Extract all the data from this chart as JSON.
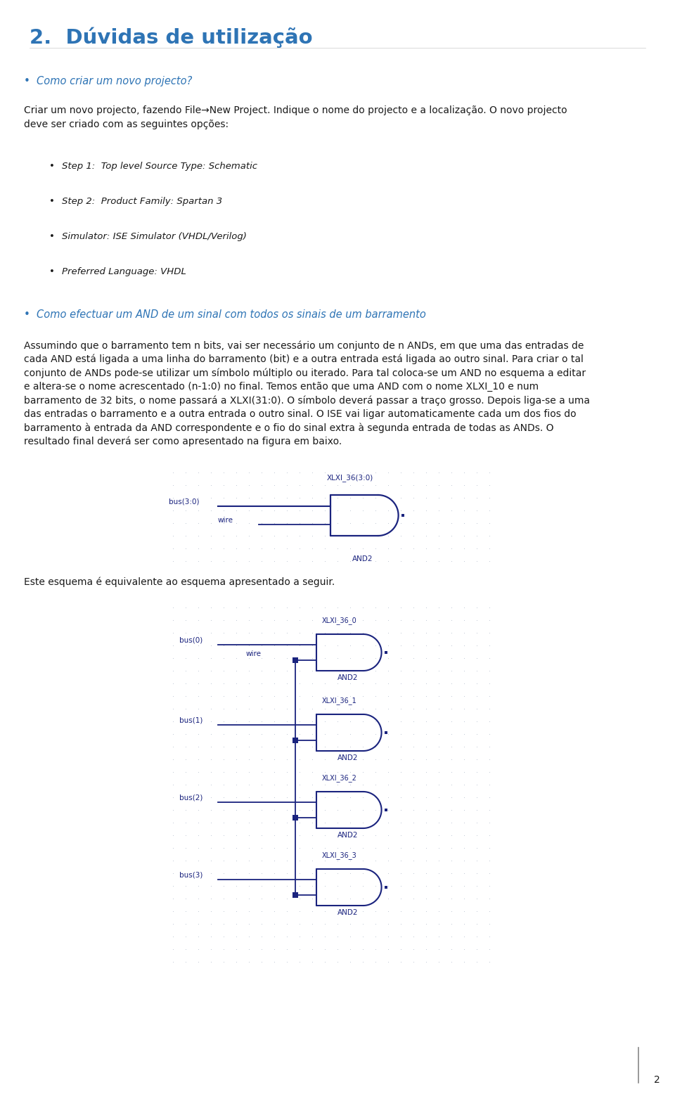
{
  "title": "2.  Dúvidas de utilização",
  "title_color": "#2E74B5",
  "bullet_color": "#2E74B5",
  "text_color": "#1a1a1a",
  "bg_color": "#ffffff",
  "circuit_color": "#1a237e",
  "grid_color": "#9daabf",
  "section_heading": "Como criar um novo projecto?",
  "section_heading2": "Como efectuar um AND de um sinal com todos os sinais de um barramento",
  "bullets": [
    "Step 1:  Top level Source Type: Schematic",
    "Step 2:  Product Family: Spartan 3",
    "Simulator: ISE Simulator (VHDL/Verilog)",
    "Preferred Language: VHDL"
  ],
  "equiv_text": "Este esquema é equivalente ao esquema apresentado a seguir.",
  "page_num": "2"
}
